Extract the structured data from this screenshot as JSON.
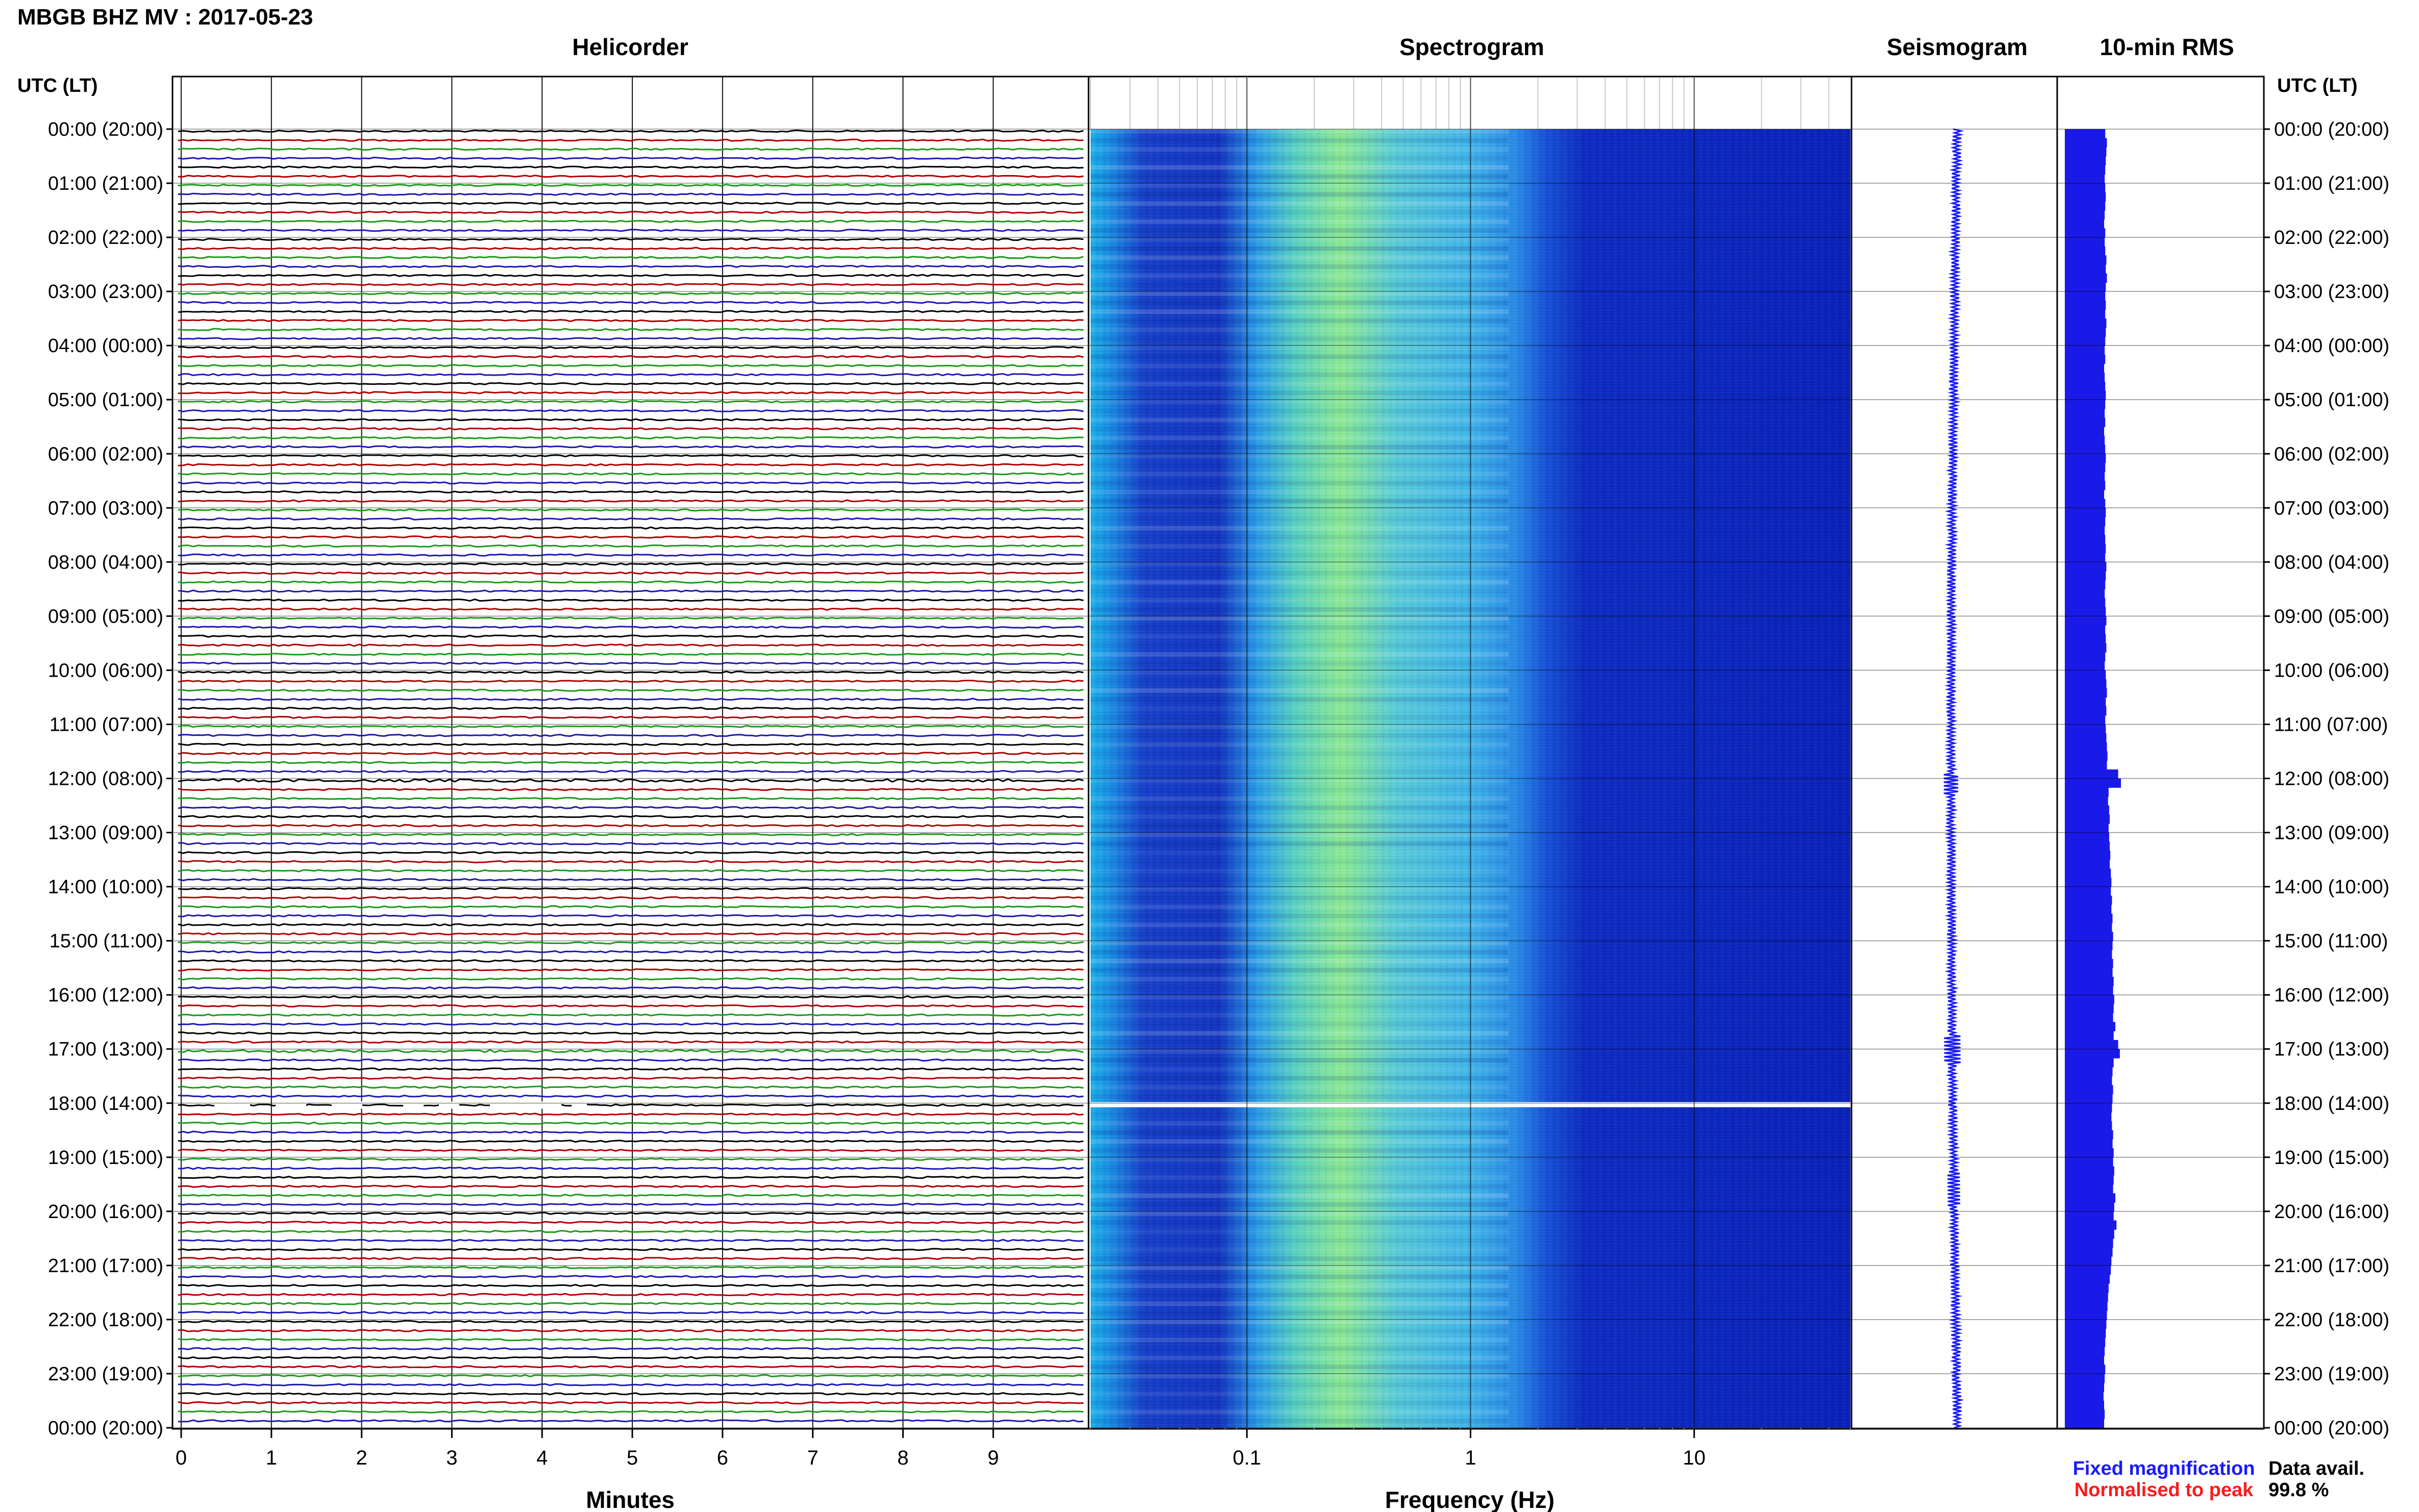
{
  "title": "MBGB BHZ MV : 2017-05-23",
  "time_axis_label": "UTC (LT)",
  "time_labels": [
    "00:00 (20:00)",
    "01:00 (21:00)",
    "02:00 (22:00)",
    "03:00 (23:00)",
    "04:00 (00:00)",
    "05:00 (01:00)",
    "06:00 (02:00)",
    "07:00 (03:00)",
    "08:00 (04:00)",
    "09:00 (05:00)",
    "10:00 (06:00)",
    "11:00 (07:00)",
    "12:00 (08:00)",
    "13:00 (09:00)",
    "14:00 (10:00)",
    "15:00 (11:00)",
    "16:00 (12:00)",
    "17:00 (13:00)",
    "18:00 (14:00)",
    "19:00 (15:00)",
    "20:00 (16:00)",
    "21:00 (17:00)",
    "22:00 (18:00)",
    "23:00 (19:00)",
    "00:00 (20:00)"
  ],
  "panels": {
    "helicorder": {
      "title": "Helicorder",
      "xlabel": "Minutes",
      "ticks": [
        "0",
        "1",
        "2",
        "3",
        "4",
        "5",
        "6",
        "7",
        "8",
        "9"
      ]
    },
    "spectrogram": {
      "title": "Spectrogram",
      "xlabel": "Frequency (Hz)",
      "ticks": [
        "0.1",
        "1",
        "10"
      ],
      "scale": "log",
      "frange_hz": [
        0.02,
        50
      ]
    },
    "seismogram": {
      "title": "Seismogram"
    },
    "rms": {
      "title": "10-min RMS"
    }
  },
  "legend": {
    "fixed": "Fixed magnification",
    "normalised": "Normalised to peak",
    "fixed_color": "#1a1aff",
    "normalised_color": "#ff1a1a"
  },
  "availability": {
    "label": "Data avail.",
    "value": "99.8 %"
  },
  "colors": {
    "trace_cycle": [
      "#000000",
      "#b00000",
      "#1a9a1a",
      "#1a1ab0"
    ],
    "spectro_low": "#0a1ab8",
    "spectro_mid": "#22a8e8",
    "spectro_high": "#a8f070",
    "bar": "#1a1ae8"
  },
  "chart_data": {
    "type": "helicorder+spectrogram",
    "date": "2017-05-23",
    "station": "MBGB BHZ MV",
    "line_minutes": 10,
    "hours": 24,
    "gap_utc": "18:00",
    "events_utc": [
      "00:10",
      "11:55",
      "16:50",
      "18:50",
      "19:40"
    ],
    "rms_10min_relative": [
      0.72,
      0.75,
      0.74,
      0.73,
      0.72,
      0.71,
      0.72,
      0.73,
      0.72,
      0.71,
      0.7,
      0.72,
      0.71,
      0.72,
      0.74,
      0.73,
      0.75,
      0.73,
      0.72,
      0.73,
      0.72,
      0.74,
      0.73,
      0.72,
      0.71,
      0.72,
      0.7,
      0.71,
      0.72,
      0.73,
      0.72,
      0.71,
      0.72,
      0.7,
      0.71,
      0.72,
      0.73,
      0.72,
      0.71,
      0.72,
      0.7,
      0.72,
      0.73,
      0.72,
      0.71,
      0.72,
      0.73,
      0.72,
      0.74,
      0.73,
      0.72,
      0.71,
      0.72,
      0.73,
      0.74,
      0.72,
      0.73,
      0.74,
      0.72,
      0.71,
      0.73,
      0.74,
      0.75,
      0.73,
      0.74,
      0.72,
      0.73,
      0.74,
      0.75,
      0.76,
      0.75,
      0.95,
      1.0,
      0.78,
      0.77,
      0.79,
      0.8,
      0.78,
      0.79,
      0.8,
      0.81,
      0.8,
      0.82,
      0.83,
      0.82,
      0.84,
      0.83,
      0.85,
      0.84,
      0.86,
      0.85,
      0.84,
      0.86,
      0.85,
      0.87,
      0.86,
      0.88,
      0.87,
      0.86,
      0.9,
      0.87,
      0.95,
      0.98,
      0.87,
      0.85,
      0.84,
      0.86,
      0.85,
      0.84,
      0.83,
      0.84,
      0.86,
      0.85,
      0.87,
      0.86,
      0.88,
      0.87,
      0.86,
      0.9,
      0.88,
      0.87,
      0.92,
      0.88,
      0.86,
      0.85,
      0.83,
      0.82,
      0.8,
      0.78,
      0.77,
      0.76,
      0.75,
      0.74,
      0.73,
      0.72,
      0.71,
      0.7,
      0.72,
      0.71,
      0.7,
      0.69,
      0.7,
      0.71,
      0.7
    ]
  }
}
